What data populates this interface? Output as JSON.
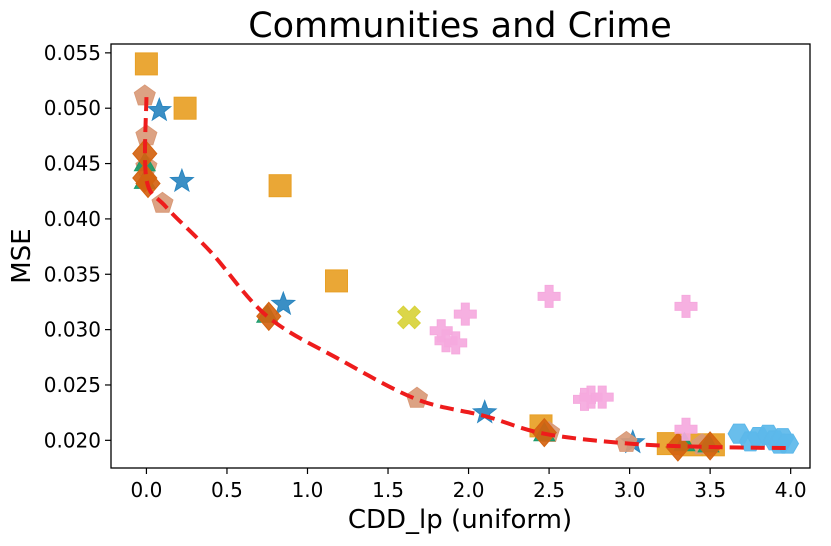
{
  "chart_data": {
    "type": "scatter",
    "title": "Communities and Crime",
    "xlabel": "CDD_lp (uniform)",
    "ylabel": "MSE",
    "xlim": [
      -0.22,
      4.12
    ],
    "ylim": [
      0.0175,
      0.0558
    ],
    "grid": false,
    "xticks": [
      0.0,
      0.5,
      1.0,
      1.5,
      2.0,
      2.5,
      3.0,
      3.5,
      4.0
    ],
    "xtick_labels": [
      "0.0",
      "0.5",
      "1.0",
      "1.5",
      "2.0",
      "2.5",
      "3.0",
      "3.5",
      "4.0"
    ],
    "yticks": [
      0.02,
      0.025,
      0.03,
      0.035,
      0.04,
      0.045,
      0.05,
      0.055
    ],
    "ytick_labels": [
      "0.020",
      "0.025",
      "0.030",
      "0.035",
      "0.040",
      "0.045",
      "0.050",
      "0.055"
    ],
    "series": [
      {
        "name": "square",
        "marker": "square",
        "color": "#e8a025",
        "points": [
          [
            0.0,
            0.054
          ],
          [
            0.24,
            0.05
          ],
          [
            0.83,
            0.043
          ],
          [
            1.18,
            0.0344
          ],
          [
            2.45,
            0.0213
          ],
          [
            3.24,
            0.0197
          ],
          [
            3.38,
            0.0196
          ],
          [
            3.52,
            0.0196
          ]
        ]
      },
      {
        "name": "star",
        "marker": "star",
        "color": "#2a86c0",
        "points": [
          [
            0.08,
            0.0498
          ],
          [
            0.22,
            0.0434
          ],
          [
            0.85,
            0.0323
          ],
          [
            2.1,
            0.0225
          ],
          [
            3.02,
            0.0198
          ]
        ]
      },
      {
        "name": "pentagon",
        "marker": "pentagon",
        "color": "#d99a78",
        "points": [
          [
            -0.01,
            0.0511
          ],
          [
            0.0,
            0.0475
          ],
          [
            0.0,
            0.0447
          ],
          [
            0.1,
            0.0414
          ],
          [
            1.68,
            0.0238
          ],
          [
            2.5,
            0.0207
          ],
          [
            2.98,
            0.0198
          ],
          [
            3.45,
            0.0196
          ]
        ]
      },
      {
        "name": "triangle",
        "marker": "triangle",
        "color": "#1a9a6a",
        "points": [
          [
            -0.01,
            0.0449
          ],
          [
            -0.01,
            0.0433
          ],
          [
            0.75,
            0.0312
          ],
          [
            2.47,
            0.0205
          ],
          [
            3.34,
            0.0196
          ],
          [
            3.49,
            0.0195
          ]
        ]
      },
      {
        "name": "diamond",
        "marker": "diamond",
        "color": "#d46310",
        "points": [
          [
            -0.01,
            0.0459
          ],
          [
            -0.01,
            0.0437
          ],
          [
            0.01,
            0.0432
          ],
          [
            0.76,
            0.0312
          ],
          [
            2.47,
            0.0207
          ],
          [
            3.3,
            0.0194
          ],
          [
            3.5,
            0.0195
          ]
        ]
      },
      {
        "name": "x",
        "marker": "x",
        "color": "#d8d23a",
        "points": [
          [
            1.63,
            0.0311
          ]
        ]
      },
      {
        "name": "plus",
        "marker": "plus",
        "color": "#f5a9de",
        "points": [
          [
            1.83,
            0.0299
          ],
          [
            1.86,
            0.029
          ],
          [
            1.92,
            0.0288
          ],
          [
            1.98,
            0.0314
          ],
          [
            2.5,
            0.033
          ],
          [
            3.35,
            0.0321
          ],
          [
            2.72,
            0.0237
          ],
          [
            2.76,
            0.0239
          ],
          [
            2.83,
            0.0239
          ],
          [
            3.35,
            0.021
          ]
        ]
      },
      {
        "name": "hexagon",
        "marker": "hexagon",
        "color": "#5cb8ea",
        "points": [
          [
            3.68,
            0.0206
          ],
          [
            3.75,
            0.0199
          ],
          [
            3.8,
            0.0203
          ],
          [
            3.86,
            0.0205
          ],
          [
            3.9,
            0.02
          ],
          [
            3.93,
            0.0197
          ],
          [
            3.95,
            0.0202
          ],
          [
            3.98,
            0.0197
          ]
        ]
      }
    ],
    "frontier": {
      "name": "frontier",
      "style": "dashed",
      "color": "#ee1c1c",
      "points": [
        [
          0.0,
          0.051
        ],
        [
          0.0,
          0.0436
        ],
        [
          0.12,
          0.0411
        ],
        [
          0.4,
          0.037
        ],
        [
          0.75,
          0.0312
        ],
        [
          1.2,
          0.0273
        ],
        [
          1.68,
          0.0237
        ],
        [
          2.1,
          0.0222
        ],
        [
          2.47,
          0.0206
        ],
        [
          3.0,
          0.0197
        ],
        [
          3.5,
          0.0194
        ],
        [
          4.0,
          0.0193
        ]
      ]
    }
  }
}
